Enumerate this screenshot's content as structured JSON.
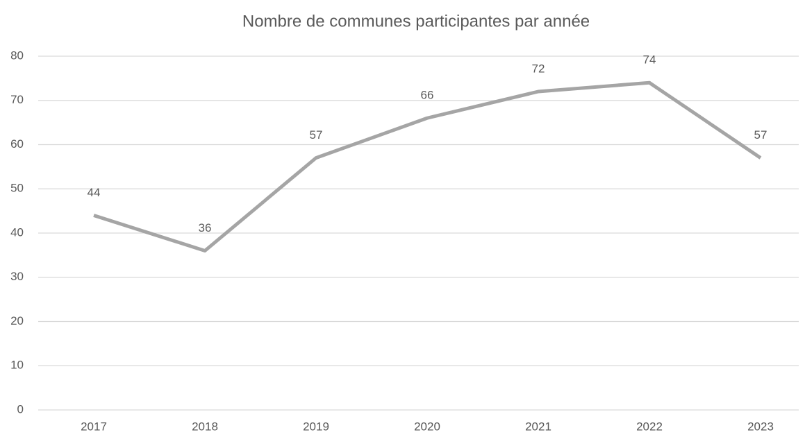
{
  "chart_data": {
    "type": "line",
    "title": "Nombre de communes participantes par année",
    "categories": [
      "2017",
      "2018",
      "2019",
      "2020",
      "2021",
      "2022",
      "2023"
    ],
    "values": [
      44,
      36,
      57,
      66,
      72,
      74,
      57
    ],
    "color": "#a5a5a5",
    "ylim": [
      0,
      80
    ],
    "yticks": [
      0,
      10,
      20,
      30,
      40,
      50,
      60,
      70,
      80
    ],
    "grid": true
  }
}
